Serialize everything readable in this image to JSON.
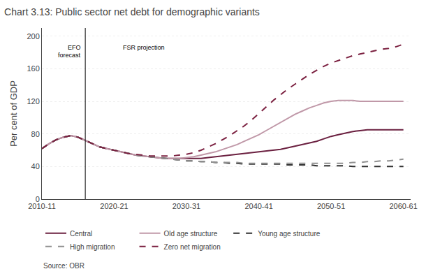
{
  "chart_data": {
    "type": "line",
    "title": "Chart 3.13: Public sector net debt for demographic variants",
    "y_label": "Per cent of GDP",
    "source": "Source: OBR",
    "annotations": [
      {
        "text": "EFO",
        "x": 2016,
        "y": 192
      },
      {
        "text": "forecast",
        "x": 2016,
        "y": 183
      },
      {
        "text": "FSR projection",
        "x": 2021,
        "y": 192
      }
    ],
    "reference_lines": [
      {
        "axis": "x",
        "value": 2016
      }
    ],
    "x": [
      2010,
      2011,
      2012,
      2013,
      2014,
      2015,
      2016,
      2017,
      2018,
      2019,
      2020,
      2021,
      2022,
      2023,
      2024,
      2025,
      2026,
      2027,
      2028,
      2029,
      2030,
      2031,
      2032,
      2033,
      2034,
      2035,
      2036,
      2037,
      2038,
      2039,
      2040,
      2041,
      2042,
      2043,
      2044,
      2045,
      2046,
      2047,
      2048,
      2049,
      2050,
      2051,
      2052,
      2053,
      2054,
      2055,
      2056,
      2057,
      2058,
      2059,
      2060
    ],
    "series": [
      {
        "name": "Central",
        "color": "#6B2040",
        "line_style": "solid",
        "values": [
          62,
          68,
          73,
          76,
          78,
          76,
          72,
          68,
          64,
          62,
          60,
          58,
          56,
          54,
          53,
          52,
          51,
          50,
          50,
          50,
          50,
          50,
          50,
          51,
          52,
          53,
          54,
          55,
          56,
          57,
          58,
          59,
          60,
          61,
          63,
          65,
          67,
          69,
          71,
          74,
          77,
          79,
          81,
          83,
          84,
          85,
          85,
          85,
          85,
          85,
          85
        ]
      },
      {
        "name": "Old age structure",
        "color": "#C098A8",
        "line_style": "solid",
        "values": [
          62,
          68,
          73,
          76,
          78,
          76,
          72,
          68,
          64,
          62,
          60,
          58,
          56,
          54,
          53,
          52,
          51,
          50,
          50,
          50,
          51,
          52,
          54,
          56,
          58,
          61,
          64,
          67,
          71,
          75,
          79,
          84,
          89,
          94,
          99,
          104,
          108,
          112,
          115,
          118,
          120,
          121,
          121,
          121,
          120,
          120,
          120,
          120,
          120,
          120,
          120
        ]
      },
      {
        "name": "Young age structure",
        "color": "#303030",
        "line_style": "dashed",
        "values": [
          62,
          68,
          73,
          76,
          78,
          76,
          72,
          68,
          64,
          62,
          60,
          58,
          56,
          54,
          53,
          52,
          51,
          50,
          49,
          48,
          47,
          47,
          46,
          46,
          45,
          45,
          44,
          44,
          43,
          43,
          43,
          43,
          43,
          43,
          42,
          42,
          42,
          42,
          41,
          41,
          41,
          41,
          41,
          40,
          40,
          40,
          40,
          40,
          40,
          40,
          40
        ]
      },
      {
        "name": "High migration",
        "color": "#909090",
        "line_style": "dashed",
        "values": [
          62,
          68,
          73,
          76,
          78,
          76,
          72,
          68,
          64,
          62,
          60,
          58,
          56,
          54,
          53,
          52,
          51,
          50,
          49,
          48,
          47,
          47,
          46,
          46,
          45,
          45,
          45,
          45,
          44,
          44,
          44,
          44,
          44,
          44,
          44,
          44,
          44,
          44,
          44,
          44,
          44,
          44,
          44,
          45,
          45,
          46,
          46,
          47,
          47,
          48,
          49
        ]
      },
      {
        "name": "Zero net migration",
        "color": "#7B2040",
        "line_style": "dashed",
        "values": [
          62,
          68,
          73,
          76,
          78,
          76,
          72,
          68,
          64,
          62,
          60,
          58,
          56,
          55,
          54,
          53,
          53,
          53,
          53,
          54,
          55,
          57,
          60,
          64,
          68,
          73,
          78,
          84,
          90,
          97,
          105,
          113,
          121,
          128,
          135,
          141,
          147,
          153,
          158,
          163,
          167,
          170,
          173,
          176,
          178,
          180,
          182,
          184,
          185,
          187,
          190
        ]
      }
    ],
    "xlim": [
      2010,
      2061
    ],
    "xticks": [
      {
        "value": 2010,
        "label": "2010-11"
      },
      {
        "value": 2020,
        "label": "2020-21"
      },
      {
        "value": 2030,
        "label": "2030-31"
      },
      {
        "value": 2040,
        "label": "2040-41"
      },
      {
        "value": 2050,
        "label": "2050-51"
      },
      {
        "value": 2060,
        "label": "2060-61"
      }
    ],
    "ylim": [
      0,
      210
    ],
    "yticks": [
      0,
      40,
      80,
      120,
      160,
      200
    ],
    "grid": true,
    "legend": "bottom"
  }
}
